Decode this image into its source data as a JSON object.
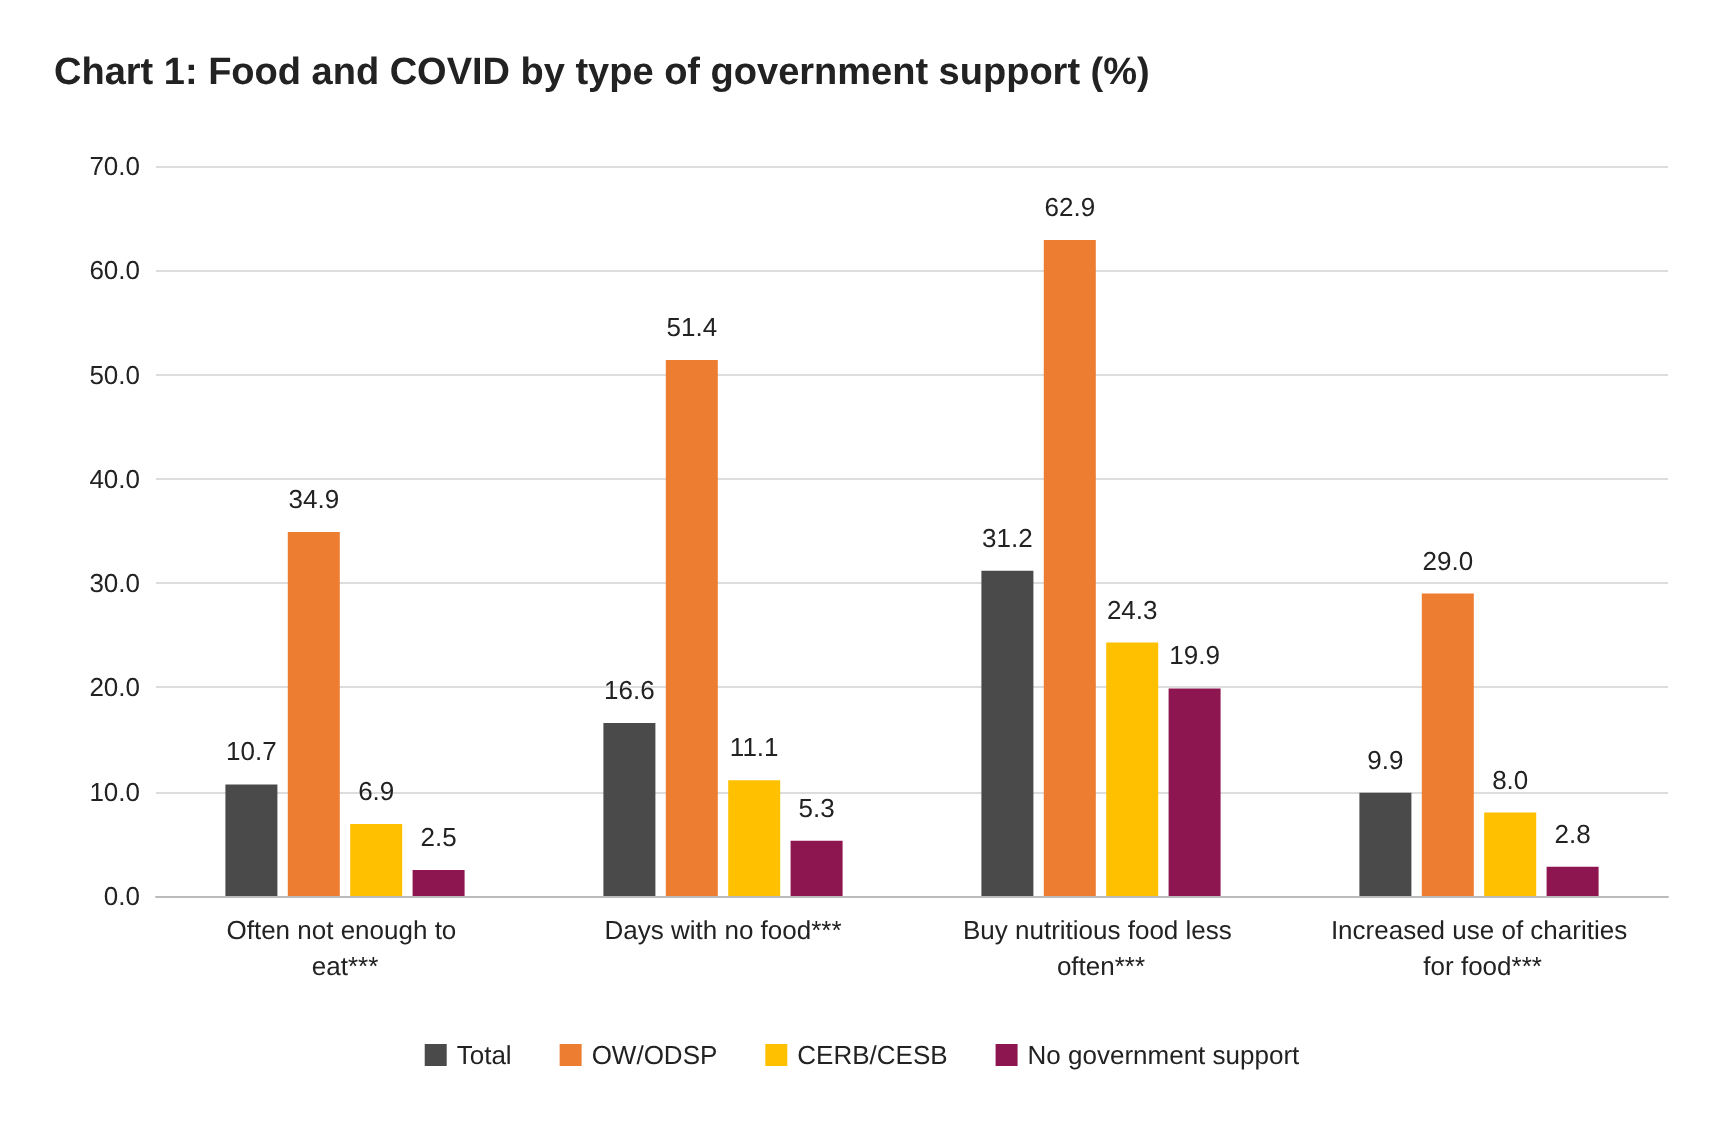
{
  "chart_data": {
    "type": "bar",
    "title": "Chart 1: Food and COVID by type of government support (%)",
    "categories": [
      "Often not enough to eat***",
      "Days with no food***",
      "Buy nutritious food less often***",
      "Increased use of charities for food***"
    ],
    "series": [
      {
        "name": "Total",
        "color": "#4a4a4a",
        "values": [
          10.7,
          16.6,
          31.2,
          9.9
        ],
        "value_labels": [
          "10.7",
          "16.6",
          "31.2",
          "9.9"
        ]
      },
      {
        "name": "OW/ODSP",
        "color": "#ed7d31",
        "values": [
          34.9,
          51.4,
          62.9,
          29.0
        ],
        "value_labels": [
          "34.9",
          "51.4",
          "62.9",
          "29.0"
        ]
      },
      {
        "name": "CERB/CESB",
        "color": "#ffc000",
        "values": [
          6.9,
          11.1,
          24.3,
          8.0
        ],
        "value_labels": [
          "6.9",
          "11.1",
          "24.3",
          "8.0"
        ]
      },
      {
        "name": "No government support",
        "color": "#8e1650",
        "values": [
          2.5,
          5.3,
          19.9,
          2.8
        ],
        "value_labels": [
          "2.5",
          "5.3",
          "19.9",
          "2.8"
        ]
      }
    ],
    "ylim": [
      0,
      70
    ],
    "yticks": [
      {
        "value": 0,
        "label": "0.0"
      },
      {
        "value": 10,
        "label": "10.0"
      },
      {
        "value": 20,
        "label": "20.0"
      },
      {
        "value": 30,
        "label": "30.0"
      },
      {
        "value": 40,
        "label": "40.0"
      },
      {
        "value": 50,
        "label": "50.0"
      },
      {
        "value": 60,
        "label": "60.0"
      },
      {
        "value": 70,
        "label": "70.0"
      }
    ],
    "grid": "y",
    "legend": "bottom"
  }
}
